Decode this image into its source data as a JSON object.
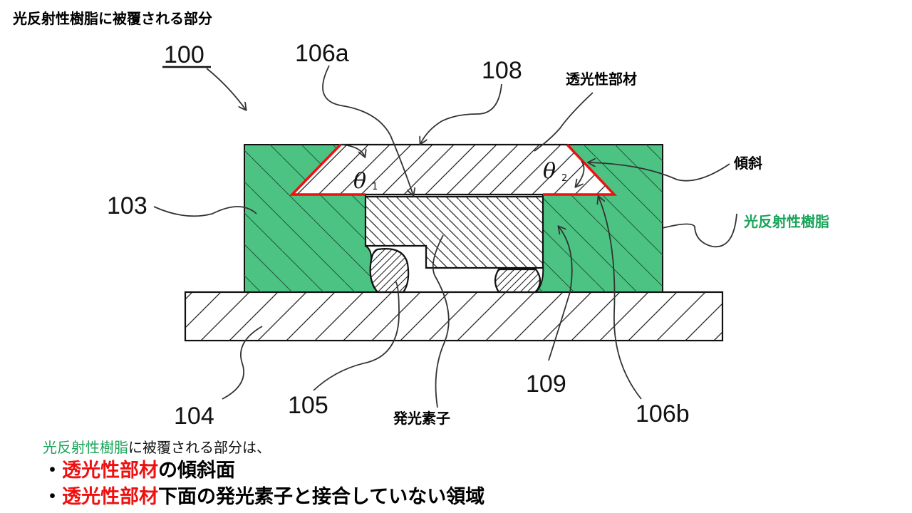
{
  "title": "光反射性樹脂に被覆される部分",
  "labels": {
    "ref_100": "100",
    "ref_106a": "106a",
    "ref_108": "108",
    "ref_103": "103",
    "ref_104": "104",
    "ref_105": "105",
    "ref_109": "109",
    "ref_106b": "106b",
    "theta_symbol": "θ",
    "theta1_sub": "1",
    "theta2_sub": "2",
    "translucent_member": "透光性部材",
    "slope": "傾斜",
    "light_reflective_resin": "光反射性樹脂",
    "light_emitting_element": "発光素子"
  },
  "description": {
    "intro_green": "光反射性樹脂",
    "intro_rest": "に被覆される部分は、",
    "bullet1_prefix": "・",
    "bullet1_red": "透光性部材",
    "bullet1_rest": "の傾斜面",
    "bullet2_prefix": "・",
    "bullet2_red": "透光性部材",
    "bullet2_rest": "下面の発光素子と接合していない領域"
  },
  "colors": {
    "resin_green": "#4cc383",
    "highlight_red": "#ee1111",
    "label_green": "#1aa45a"
  }
}
